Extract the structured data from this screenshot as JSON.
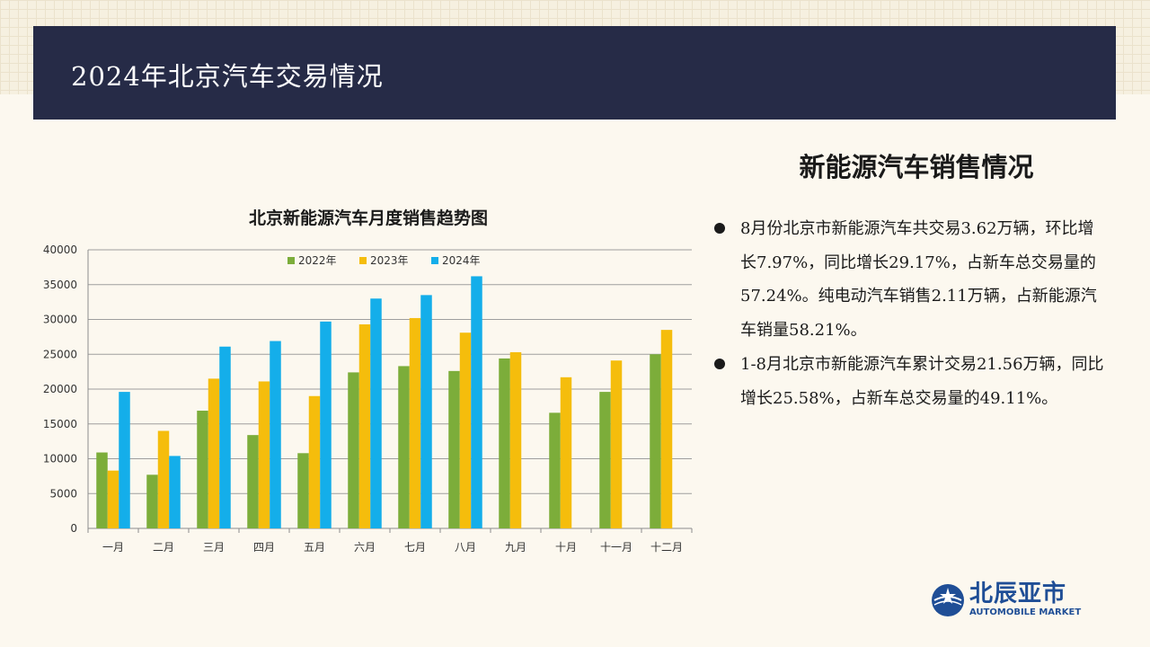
{
  "header": {
    "title": "2024年北京汽车交易情况"
  },
  "section": {
    "title": "新能源汽车销售情况",
    "bullets": [
      "8月份北京市新能源汽车共交易3.62万辆，环比增长7.97%，同比增长29.17%，占新车总交易量的57.24%。纯电动汽车销售2.11万辆，占新能源汽车销量58.21%。",
      "1-8月北京市新能源汽车累计交易21.56万辆，同比增长25.58%，占新车总交易量的49.11%。"
    ]
  },
  "logo": {
    "name": "北辰亚市",
    "subtitle": "AUTOMOBILE MARKET"
  },
  "colors": {
    "header_bg": "#262b47",
    "series": [
      "#7cad3a",
      "#f5bd0c",
      "#14aeea"
    ]
  },
  "chart_data": {
    "type": "bar",
    "title": "北京新能源汽车月度销售趋势图",
    "categories": [
      "一月",
      "二月",
      "三月",
      "四月",
      "五月",
      "六月",
      "七月",
      "八月",
      "九月",
      "十月",
      "十一月",
      "十二月"
    ],
    "series": [
      {
        "name": "2022年",
        "values": [
          10900,
          7700,
          16900,
          13400,
          10800,
          22400,
          23300,
          22600,
          24400,
          16600,
          19600,
          25000
        ]
      },
      {
        "name": "2023年",
        "values": [
          8300,
          14000,
          21500,
          21100,
          19000,
          29300,
          30200,
          28100,
          25300,
          21700,
          24100,
          28500
        ]
      },
      {
        "name": "2024年",
        "values": [
          19600,
          10400,
          26100,
          26900,
          29700,
          33000,
          33500,
          36200,
          null,
          null,
          null,
          null
        ]
      }
    ],
    "ylim": [
      0,
      40000
    ],
    "yticks": [
      "0",
      "5000",
      "10000",
      "15000",
      "20000",
      "25000",
      "30000",
      "35000",
      "40000"
    ],
    "grid": true,
    "legend_position": "top-center"
  }
}
